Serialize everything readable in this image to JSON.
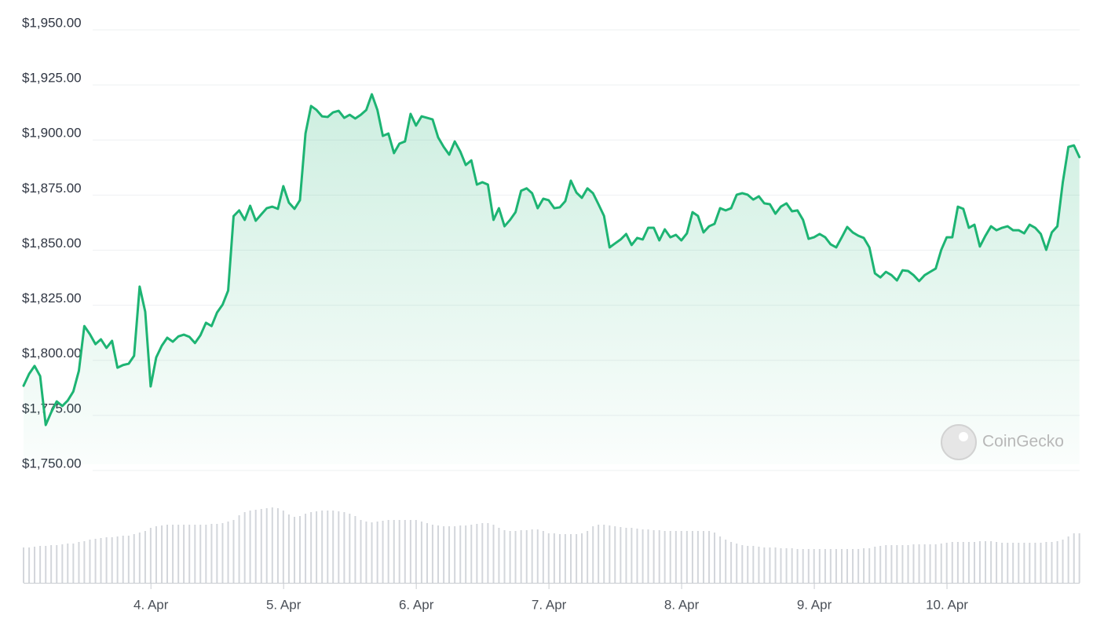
{
  "chart_data": {
    "type": "line",
    "color": "#1db473",
    "grid": true,
    "watermark": "CoinGecko",
    "xlim": [
      3.04,
      11.0
    ],
    "xticks": [
      {
        "value": 4,
        "label": "4. Apr"
      },
      {
        "value": 5,
        "label": "5. Apr"
      },
      {
        "value": 6,
        "label": "6. Apr"
      },
      {
        "value": 7,
        "label": "7. Apr"
      },
      {
        "value": 8,
        "label": "8. Apr"
      },
      {
        "value": 9,
        "label": "9. Apr"
      },
      {
        "value": 10,
        "label": "10. Apr"
      }
    ],
    "ylim": [
      1750,
      1950
    ],
    "yticks": [
      {
        "value": 1750,
        "label": "$1,750.00"
      },
      {
        "value": 1775,
        "label": "$1,775.00"
      },
      {
        "value": 1800,
        "label": "$1,800.00"
      },
      {
        "value": 1825,
        "label": "$1,825.00"
      },
      {
        "value": 1850,
        "label": "$1,850.00"
      },
      {
        "value": 1875,
        "label": "$1,875.00"
      },
      {
        "value": 1900,
        "label": "$1,900.00"
      },
      {
        "value": 1925,
        "label": "$1,925.00"
      },
      {
        "value": 1950,
        "label": "$1,950.00"
      }
    ],
    "x": [
      3.04,
      3.082,
      3.123,
      3.165,
      3.207,
      3.248,
      3.29,
      3.332,
      3.373,
      3.415,
      3.457,
      3.498,
      3.54,
      3.582,
      3.623,
      3.665,
      3.707,
      3.748,
      3.79,
      3.832,
      3.873,
      3.915,
      3.957,
      3.998,
      4.04,
      4.082,
      4.123,
      4.165,
      4.207,
      4.248,
      4.29,
      4.332,
      4.373,
      4.415,
      4.457,
      4.498,
      4.54,
      4.582,
      4.623,
      4.665,
      4.707,
      4.748,
      4.79,
      4.832,
      4.873,
      4.915,
      4.957,
      4.998,
      5.04,
      5.082,
      5.123,
      5.165,
      5.207,
      5.248,
      5.29,
      5.332,
      5.373,
      5.415,
      5.457,
      5.498,
      5.54,
      5.582,
      5.623,
      5.665,
      5.707,
      5.748,
      5.79,
      5.832,
      5.873,
      5.915,
      5.957,
      5.998,
      6.04,
      6.082,
      6.123,
      6.165,
      6.207,
      6.248,
      6.29,
      6.332,
      6.373,
      6.415,
      6.457,
      6.498,
      6.54,
      6.582,
      6.623,
      6.665,
      6.707,
      6.748,
      6.79,
      6.832,
      6.873,
      6.915,
      6.957,
      6.998,
      7.04,
      7.082,
      7.123,
      7.165,
      7.207,
      7.248,
      7.29,
      7.332,
      7.373,
      7.415,
      7.457,
      7.498,
      7.54,
      7.582,
      7.623,
      7.665,
      7.707,
      7.748,
      7.79,
      7.832,
      7.873,
      7.915,
      7.957,
      7.998,
      8.04,
      8.082,
      8.123,
      8.165,
      8.207,
      8.248,
      8.29,
      8.332,
      8.373,
      8.415,
      8.457,
      8.498,
      8.54,
      8.582,
      8.623,
      8.665,
      8.707,
      8.748,
      8.79,
      8.832,
      8.873,
      8.915,
      8.957,
      8.998,
      9.04,
      9.082,
      9.123,
      9.165,
      9.207,
      9.248,
      9.29,
      9.332,
      9.373,
      9.415,
      9.457,
      9.498,
      9.54,
      9.582,
      9.623,
      9.665,
      9.707,
      9.748,
      9.79,
      9.832,
      9.873,
      9.915,
      9.957,
      9.998,
      10.04,
      10.082,
      10.123,
      10.165,
      10.207,
      10.248,
      10.29,
      10.332,
      10.373,
      10.415,
      10.457,
      10.498,
      10.54,
      10.582,
      10.623,
      10.665,
      10.707,
      10.748,
      10.79,
      10.832,
      10.873,
      10.915,
      10.957,
      10.998
    ],
    "values": [
      1785.6,
      1791,
      1794.6,
      1790,
      1767.8,
      1773.5,
      1778.5,
      1776.4,
      1778.9,
      1783,
      1792.4,
      1812.7,
      1809,
      1804.5,
      1806.7,
      1802.8,
      1806,
      1793.8,
      1795,
      1795.6,
      1799.2,
      1830.6,
      1819.2,
      1785.3,
      1798.5,
      1803.8,
      1807.4,
      1805.6,
      1808,
      1808.8,
      1807.8,
      1805,
      1808.5,
      1814.2,
      1812.7,
      1818.8,
      1822.4,
      1828.8,
      1862.6,
      1865.2,
      1860.9,
      1867.3,
      1860.5,
      1863.4,
      1866.2,
      1866.9,
      1865.9,
      1876.2,
      1868.7,
      1865.9,
      1869.8,
      1900.1,
      1912.6,
      1910.8,
      1907.9,
      1907.6,
      1909.7,
      1910.4,
      1907.2,
      1908.6,
      1906.9,
      1908.6,
      1910.8,
      1917.9,
      1910.8,
      1899,
      1900.1,
      1891.2,
      1895.5,
      1896.5,
      1909,
      1903.7,
      1907.9,
      1907.2,
      1906.5,
      1898.3,
      1894,
      1890.5,
      1896.5,
      1891.9,
      1885.8,
      1887.9,
      1876.9,
      1878,
      1876.9,
      1860.9,
      1866.2,
      1858,
      1860.9,
      1864.4,
      1874.1,
      1875.2,
      1873,
      1866.2,
      1870.5,
      1869.8,
      1866.2,
      1866.6,
      1869.4,
      1878.7,
      1873.3,
      1870.9,
      1875.2,
      1873,
      1868,
      1862.7,
      1848.4,
      1850.2,
      1852,
      1854.5,
      1849.5,
      1852.7,
      1852,
      1857.3,
      1857.3,
      1851.6,
      1856.6,
      1853,
      1854.1,
      1851.6,
      1854.8,
      1864.4,
      1862.7,
      1855.2,
      1858,
      1859.1,
      1866.2,
      1865.2,
      1866.2,
      1872.3,
      1873,
      1872.3,
      1870.1,
      1871.6,
      1868.4,
      1868,
      1863.7,
      1866.9,
      1868.4,
      1864.8,
      1865.2,
      1860.9,
      1852.3,
      1853,
      1854.5,
      1853,
      1849.8,
      1848.4,
      1853,
      1857.7,
      1855.2,
      1853.7,
      1852.7,
      1848.4,
      1836.6,
      1834.8,
      1837.3,
      1835.8,
      1833.4,
      1838,
      1837.7,
      1835.8,
      1833.1,
      1835.8,
      1837.3,
      1838.8,
      1847.3,
      1853,
      1853,
      1866.9,
      1865.9,
      1857.3,
      1858.7,
      1848.8,
      1853.7,
      1858,
      1856.2,
      1857.3,
      1858,
      1856.2,
      1856.2,
      1854.8,
      1858.7,
      1857.3,
      1854.5,
      1847.3,
      1855.2,
      1858,
      1878,
      1894,
      1894.7,
      1889.4
    ],
    "volume": {
      "color": "#d3d6db",
      "ylim": [
        0,
        100
      ],
      "values": [
        45,
        45,
        46,
        47,
        47,
        48,
        48,
        49,
        50,
        50,
        52,
        53,
        55,
        56,
        57,
        58,
        58,
        59,
        60,
        60,
        62,
        64,
        66,
        70,
        72,
        73,
        74,
        74,
        74,
        74,
        74,
        74,
        74,
        74,
        75,
        75,
        76,
        78,
        80,
        86,
        90,
        92,
        93,
        94,
        95,
        96,
        95,
        92,
        87,
        84,
        85,
        88,
        90,
        91,
        92,
        92,
        92,
        91,
        90,
        88,
        85,
        80,
        78,
        77,
        78,
        79,
        80,
        80,
        80,
        80,
        80,
        80,
        78,
        76,
        74,
        73,
        72,
        72,
        72,
        73,
        73,
        74,
        75,
        76,
        76,
        74,
        70,
        67,
        66,
        66,
        67,
        67,
        68,
        68,
        66,
        63,
        63,
        62,
        62,
        62,
        62,
        63,
        66,
        72,
        74,
        74,
        73,
        72,
        71,
        70,
        70,
        69,
        68,
        68,
        67,
        67,
        66,
        66,
        66,
        66,
        66,
        66,
        66,
        66,
        66,
        64,
        59,
        55,
        52,
        50,
        48,
        47,
        47,
        46,
        45,
        45,
        45,
        44,
        44,
        44,
        43,
        43,
        43,
        43,
        43,
        43,
        43,
        43,
        43,
        43,
        43,
        43,
        44,
        44,
        46,
        47,
        48,
        48,
        48,
        48,
        48,
        49,
        49,
        49,
        49,
        49,
        50,
        51,
        52,
        52,
        52,
        52,
        52,
        53,
        53,
        53,
        52,
        51,
        51,
        51,
        51,
        51,
        51,
        51,
        51,
        52,
        52,
        53,
        55,
        59,
        63,
        63
      ]
    }
  }
}
